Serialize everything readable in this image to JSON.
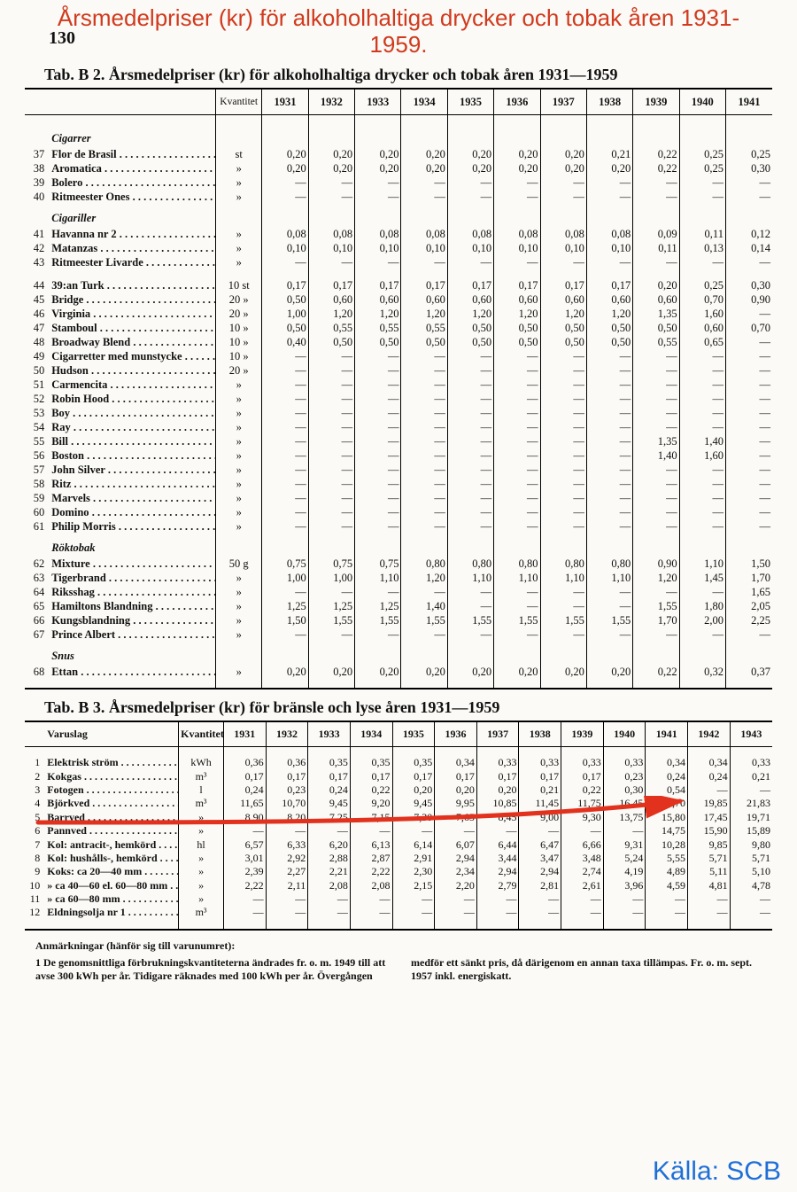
{
  "page_number": "130",
  "overlay_title": "Årsmedelpriser (kr) för alkoholhaltiga drycker och tobak åren 1931-1959.",
  "source_label": "Källa: SCB",
  "colors": {
    "overlay_title": "#d13a1e",
    "arrow": "#e2311d",
    "source": "#1e6fd8",
    "rule": "#000000",
    "background": "#fbfaf6"
  },
  "tableB2": {
    "caption": "Tab. B 2. Årsmedelpriser (kr) för alkoholhaltiga drycker och tobak åren 1931—1959",
    "qty_header": "Kvantitet",
    "years": [
      "1931",
      "1932",
      "1933",
      "1934",
      "1935",
      "1936",
      "1937",
      "1938",
      "1939",
      "1940",
      "1941"
    ],
    "sections": [
      {
        "title": "Cigarrer",
        "rows": [
          {
            "n": "37",
            "name": "Flor de Brasil",
            "qty": "st",
            "v": [
              "0,20",
              "0,20",
              "0,20",
              "0,20",
              "0,20",
              "0,20",
              "0,20",
              "0,21",
              "0,22",
              "0,25",
              "0,25"
            ]
          },
          {
            "n": "38",
            "name": "Aromatica",
            "qty": "»",
            "v": [
              "0,20",
              "0,20",
              "0,20",
              "0,20",
              "0,20",
              "0,20",
              "0,20",
              "0,20",
              "0,22",
              "0,25",
              "0,30"
            ]
          },
          {
            "n": "39",
            "name": "Bolero",
            "qty": "»",
            "v": [
              "—",
              "—",
              "—",
              "—",
              "—",
              "—",
              "—",
              "—",
              "—",
              "—",
              "—"
            ]
          },
          {
            "n": "40",
            "name": "Ritmeester Ones",
            "qty": "»",
            "v": [
              "—",
              "—",
              "—",
              "—",
              "—",
              "—",
              "—",
              "—",
              "—",
              "—",
              "—"
            ]
          }
        ]
      },
      {
        "title": "Cigariller",
        "rows": [
          {
            "n": "41",
            "name": "Havanna nr 2",
            "qty": "»",
            "v": [
              "0,08",
              "0,08",
              "0,08",
              "0,08",
              "0,08",
              "0,08",
              "0,08",
              "0,08",
              "0,09",
              "0,11",
              "0,12"
            ]
          },
          {
            "n": "42",
            "name": "Matanzas",
            "qty": "»",
            "v": [
              "0,10",
              "0,10",
              "0,10",
              "0,10",
              "0,10",
              "0,10",
              "0,10",
              "0,10",
              "0,11",
              "0,13",
              "0,14"
            ]
          },
          {
            "n": "43",
            "name": "Ritmeester Livarde",
            "qty": "»",
            "v": [
              "—",
              "—",
              "—",
              "—",
              "—",
              "—",
              "—",
              "—",
              "—",
              "—",
              "—"
            ]
          }
        ]
      },
      {
        "title": "",
        "rows": [
          {
            "n": "44",
            "name": "39:an Turk",
            "qty": "10 st",
            "v": [
              "0,17",
              "0,17",
              "0,17",
              "0,17",
              "0,17",
              "0,17",
              "0,17",
              "0,17",
              "0,20",
              "0,25",
              "0,30"
            ]
          },
          {
            "n": "45",
            "name": "Bridge",
            "qty": "20 »",
            "v": [
              "0,50",
              "0,60",
              "0,60",
              "0,60",
              "0,60",
              "0,60",
              "0,60",
              "0,60",
              "0,60",
              "0,70",
              "0,90"
            ]
          },
          {
            "n": "46",
            "name": "Virginia",
            "qty": "20 »",
            "v": [
              "1,00",
              "1,20",
              "1,20",
              "1,20",
              "1,20",
              "1,20",
              "1,20",
              "1,20",
              "1,35",
              "1,60",
              "—"
            ]
          },
          {
            "n": "47",
            "name": "Stamboul",
            "qty": "10 »",
            "v": [
              "0,50",
              "0,55",
              "0,55",
              "0,55",
              "0,50",
              "0,50",
              "0,50",
              "0,50",
              "0,50",
              "0,60",
              "0,70"
            ]
          },
          {
            "n": "48",
            "name": "Broadway Blend",
            "qty": "10 »",
            "v": [
              "0,40",
              "0,50",
              "0,50",
              "0,50",
              "0,50",
              "0,50",
              "0,50",
              "0,50",
              "0,55",
              "0,65",
              "—"
            ]
          },
          {
            "n": "49",
            "name": "Cigarretter med munstycke",
            "qty": "10 »",
            "v": [
              "—",
              "—",
              "—",
              "—",
              "—",
              "—",
              "—",
              "—",
              "—",
              "—",
              "—"
            ]
          },
          {
            "n": "50",
            "name": "Hudson",
            "qty": "20 »",
            "v": [
              "—",
              "—",
              "—",
              "—",
              "—",
              "—",
              "—",
              "—",
              "—",
              "—",
              "—"
            ]
          },
          {
            "n": "51",
            "name": "Carmencita",
            "qty": "»",
            "v": [
              "—",
              "—",
              "—",
              "—",
              "—",
              "—",
              "—",
              "—",
              "—",
              "—",
              "—"
            ]
          },
          {
            "n": "52",
            "name": "Robin Hood",
            "qty": "»",
            "v": [
              "—",
              "—",
              "—",
              "—",
              "—",
              "—",
              "—",
              "—",
              "—",
              "—",
              "—"
            ]
          },
          {
            "n": "53",
            "name": "Boy",
            "qty": "»",
            "v": [
              "—",
              "—",
              "—",
              "—",
              "—",
              "—",
              "—",
              "—",
              "—",
              "—",
              "—"
            ]
          },
          {
            "n": "54",
            "name": "Ray",
            "qty": "»",
            "v": [
              "—",
              "—",
              "—",
              "—",
              "—",
              "—",
              "—",
              "—",
              "—",
              "—",
              "—"
            ]
          },
          {
            "n": "55",
            "name": "Bill",
            "qty": "»",
            "v": [
              "—",
              "—",
              "—",
              "—",
              "—",
              "—",
              "—",
              "—",
              "1,35",
              "1,40",
              "—"
            ]
          },
          {
            "n": "56",
            "name": "Boston",
            "qty": "»",
            "v": [
              "—",
              "—",
              "—",
              "—",
              "—",
              "—",
              "—",
              "—",
              "1,40",
              "1,60",
              "—"
            ]
          },
          {
            "n": "57",
            "name": "John Silver",
            "qty": "»",
            "v": [
              "—",
              "—",
              "—",
              "—",
              "—",
              "—",
              "—",
              "—",
              "—",
              "—",
              "—"
            ]
          },
          {
            "n": "58",
            "name": "Ritz",
            "qty": "»",
            "v": [
              "—",
              "—",
              "—",
              "—",
              "—",
              "—",
              "—",
              "—",
              "—",
              "—",
              "—"
            ]
          },
          {
            "n": "59",
            "name": "Marvels",
            "qty": "»",
            "v": [
              "—",
              "—",
              "—",
              "—",
              "—",
              "—",
              "—",
              "—",
              "—",
              "—",
              "—"
            ]
          },
          {
            "n": "60",
            "name": "Domino",
            "qty": "»",
            "v": [
              "—",
              "—",
              "—",
              "—",
              "—",
              "—",
              "—",
              "—",
              "—",
              "—",
              "—"
            ]
          },
          {
            "n": "61",
            "name": "Philip Morris",
            "qty": "»",
            "v": [
              "—",
              "—",
              "—",
              "—",
              "—",
              "—",
              "—",
              "—",
              "—",
              "—",
              "—"
            ]
          }
        ]
      },
      {
        "title": "Röktobak",
        "rows": [
          {
            "n": "62",
            "name": "Mixture",
            "qty": "50 g",
            "v": [
              "0,75",
              "0,75",
              "0,75",
              "0,80",
              "0,80",
              "0,80",
              "0,80",
              "0,80",
              "0,90",
              "1,10",
              "1,50"
            ]
          },
          {
            "n": "63",
            "name": "Tigerbrand",
            "qty": "»",
            "v": [
              "1,00",
              "1,00",
              "1,10",
              "1,20",
              "1,10",
              "1,10",
              "1,10",
              "1,10",
              "1,20",
              "1,45",
              "1,70"
            ]
          },
          {
            "n": "64",
            "name": "Riksshag",
            "qty": "»",
            "v": [
              "—",
              "—",
              "—",
              "—",
              "—",
              "—",
              "—",
              "—",
              "—",
              "—",
              "1,65"
            ]
          },
          {
            "n": "65",
            "name": "Hamiltons Blandning",
            "qty": "»",
            "v": [
              "1,25",
              "1,25",
              "1,25",
              "1,40",
              "—",
              "—",
              "—",
              "—",
              "1,55",
              "1,80",
              "2,05"
            ]
          },
          {
            "n": "66",
            "name": "Kungsblandning",
            "qty": "»",
            "v": [
              "1,50",
              "1,55",
              "1,55",
              "1,55",
              "1,55",
              "1,55",
              "1,55",
              "1,55",
              "1,70",
              "2,00",
              "2,25"
            ]
          },
          {
            "n": "67",
            "name": "Prince Albert",
            "qty": "»",
            "v": [
              "—",
              "—",
              "—",
              "—",
              "—",
              "—",
              "—",
              "—",
              "—",
              "—",
              "—"
            ]
          }
        ]
      },
      {
        "title": "Snus",
        "rows": [
          {
            "n": "68",
            "name": "Ettan",
            "qty": "»",
            "v": [
              "0,20",
              "0,20",
              "0,20",
              "0,20",
              "0,20",
              "0,20",
              "0,20",
              "0,20",
              "0,22",
              "0,32",
              "0,37"
            ]
          }
        ]
      }
    ]
  },
  "tableB3": {
    "caption": "Tab. B 3. Årsmedelpriser (kr) för bränsle och lyse åren 1931—1959",
    "name_header": "Varuslag",
    "qty_header": "Kvantitet",
    "years": [
      "1931",
      "1932",
      "1933",
      "1934",
      "1935",
      "1936",
      "1937",
      "1938",
      "1939",
      "1940",
      "1941",
      "1942",
      "1943"
    ],
    "rows": [
      {
        "n": "1",
        "name": "Elektrisk ström",
        "qty": "kWh",
        "v": [
          "0,36",
          "0,36",
          "0,35",
          "0,35",
          "0,35",
          "0,34",
          "0,33",
          "0,33",
          "0,33",
          "0,33",
          "0,34",
          "0,34",
          "0,33"
        ]
      },
      {
        "n": "2",
        "name": "Kokgas",
        "qty": "m³",
        "v": [
          "0,17",
          "0,17",
          "0,17",
          "0,17",
          "0,17",
          "0,17",
          "0,17",
          "0,17",
          "0,17",
          "0,23",
          "0,24",
          "0,24",
          "0,21"
        ]
      },
      {
        "n": "3",
        "name": "Fotogen",
        "qty": "l",
        "v": [
          "0,24",
          "0,23",
          "0,24",
          "0,22",
          "0,20",
          "0,20",
          "0,20",
          "0,21",
          "0,22",
          "0,30",
          "0,54",
          "—",
          "—"
        ]
      },
      {
        "n": "4",
        "name": "Björkved",
        "qty": "m³",
        "v": [
          "11,65",
          "10,70",
          "9,45",
          "9,20",
          "9,45",
          "9,95",
          "10,85",
          "11,45",
          "11,75",
          "16,45",
          "18,70",
          "19,85",
          "21,83"
        ]
      },
      {
        "n": "5",
        "name": "Barrved",
        "qty": "»",
        "v": [
          "8,90",
          "8,20",
          "7,25",
          "7,15",
          "7,30",
          "7,65",
          "8,45",
          "9,00",
          "9,30",
          "13,75",
          "15,80",
          "17,45",
          "19,71"
        ]
      },
      {
        "n": "6",
        "name": "Pannved",
        "qty": "»",
        "v": [
          "—",
          "—",
          "—",
          "—",
          "—",
          "—",
          "—",
          "—",
          "—",
          "—",
          "14,75",
          "15,90",
          "15,89"
        ]
      },
      {
        "n": "7",
        "name": "Kol: antracit-, hemkörd",
        "qty": "hl",
        "v": [
          "6,57",
          "6,33",
          "6,20",
          "6,13",
          "6,14",
          "6,07",
          "6,44",
          "6,47",
          "6,66",
          "9,31",
          "10,28",
          "9,85",
          "9,80"
        ]
      },
      {
        "n": "8",
        "name": "Kol: hushålls-, hemkörd",
        "qty": "»",
        "v": [
          "3,01",
          "2,92",
          "2,88",
          "2,87",
          "2,91",
          "2,94",
          "3,44",
          "3,47",
          "3,48",
          "5,24",
          "5,55",
          "5,71",
          "5,71"
        ]
      },
      {
        "n": "9",
        "name": "Koks: ca 20—40 mm",
        "qty": "»",
        "v": [
          "2,39",
          "2,27",
          "2,21",
          "2,22",
          "2,30",
          "2,34",
          "2,94",
          "2,94",
          "2,74",
          "4,19",
          "4,89",
          "5,11",
          "5,10"
        ]
      },
      {
        "n": "10",
        "name": "   »    ca 40—60 el. 60—80 mm",
        "qty": "»",
        "v": [
          "2,22",
          "2,11",
          "2,08",
          "2,08",
          "2,15",
          "2,20",
          "2,79",
          "2,81",
          "2,61",
          "3,96",
          "4,59",
          "4,81",
          "4,78"
        ]
      },
      {
        "n": "11",
        "name": "   »    ca 60—80 mm",
        "qty": "»",
        "v": [
          "—",
          "—",
          "—",
          "—",
          "—",
          "—",
          "—",
          "—",
          "—",
          "—",
          "—",
          "—",
          "—"
        ]
      },
      {
        "n": "12",
        "name": "Eldningsolja nr 1",
        "qty": "m³",
        "v": [
          "—",
          "—",
          "—",
          "—",
          "—",
          "—",
          "—",
          "—",
          "—",
          "—",
          "—",
          "—",
          "—"
        ]
      }
    ]
  },
  "footnotes": {
    "heading": "Anmärkningar (hänför sig till varunumret):",
    "item_no": "1",
    "text": "De genomsnittliga förbrukningskvantiteterna ändrades fr. o. m. 1949 till att avse 300 kWh per år. Tidigare räknades med 100 kWh per år. Övergången medför ett sänkt pris, då därigenom en annan taxa tillämpas. Fr. o. m. sept. 1957 inkl. energiskatt."
  }
}
